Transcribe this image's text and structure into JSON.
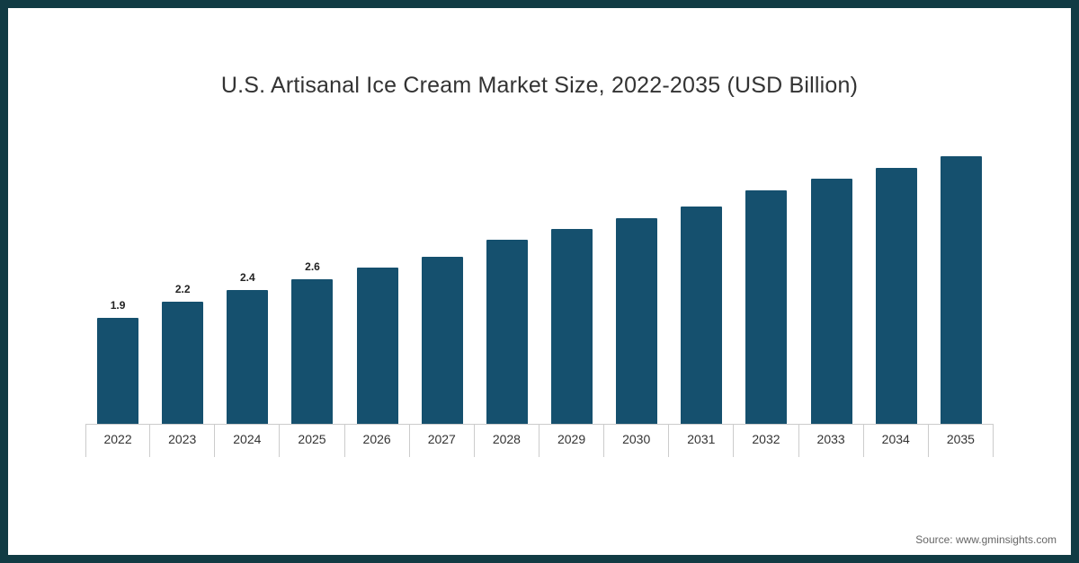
{
  "chart_data": {
    "type": "bar",
    "title": "U.S. Artisanal Ice Cream Market Size, 2022-2035 (USD Billion)",
    "categories": [
      "2022",
      "2023",
      "2024",
      "2025",
      "2026",
      "2027",
      "2028",
      "2029",
      "2030",
      "2031",
      "2032",
      "2033",
      "2034",
      "2035"
    ],
    "values": [
      1.9,
      2.2,
      2.4,
      2.6,
      2.8,
      3.0,
      3.3,
      3.5,
      3.7,
      3.9,
      4.2,
      4.4,
      4.6,
      4.8
    ],
    "value_labels": [
      "1.9",
      "2.2",
      "2.4",
      "2.6",
      null,
      null,
      null,
      null,
      null,
      null,
      null,
      null,
      null,
      null
    ],
    "xlabel": "",
    "ylabel": "",
    "ylim": [
      0,
      5
    ],
    "grid": false,
    "legend": "none",
    "bar_color": "#15506e",
    "source": "Source: www.gminsights.com"
  },
  "frame": {
    "border_color": "#113b44"
  }
}
